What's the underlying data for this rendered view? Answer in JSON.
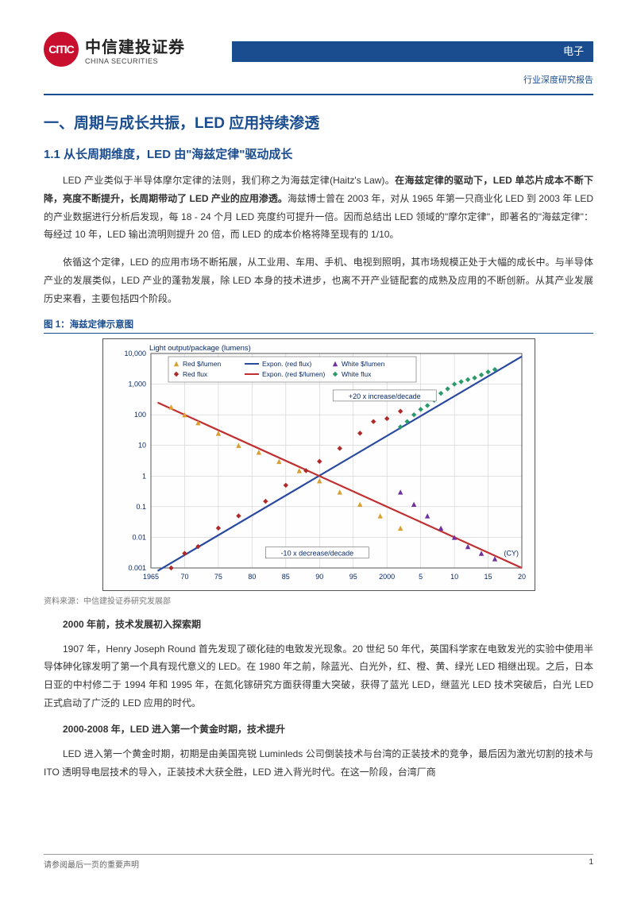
{
  "header": {
    "logo_inner": "CITIC",
    "logo_cn": "中信建投证券",
    "logo_en": "CHINA SECURITIES",
    "category": "电子",
    "report_type": "行业深度研究报告"
  },
  "section": {
    "h1": "一、周期与成长共振，LED 应用持续渗透",
    "h2": "1.1 从长周期维度，LED 由\"海兹定律\"驱动成长"
  },
  "paragraphs": {
    "p1a": "LED 产业类似于半导体摩尔定律的法则，我们称之为海兹定律(Haitz's  Law)。",
    "p1b": "在海兹定律的驱动下，LED 单芯片成本不断下降，亮度不断提升，长周期带动了 LED 产业的应用渗透。",
    "p1c": "海兹博士曾在 2003 年，对从 1965 年第一只商业化 LED 到 2003 年 LED 的产业数据进行分析后发现，每 18 - 24 个月 LED 亮度约可提升一倍。因而总结出 LED 领域的\"摩尔定律\"，即著名的\"海兹定律\"：每经过 10 年，LED 输出流明则提升 20 倍，而 LED 的成本价格将降至现有的 1/10。",
    "p2": "依循这个定律，LED 的应用市场不断拓展，从工业用、车用、手机、电视到照明，其市场规模正处于大幅的成长中。与半导体产业的发展类似，LED 产业的蓬勃发展，除 LED 本身的技术进步，也离不开产业链配套的成熟及应用的不断创新。从其产业发展历史来看，主要包括四个阶段。",
    "sub1": "2000 年前，技术发展初入探索期",
    "p3": "1907 年，Henry Joseph Round 首先发现了碳化硅的电致发光现象。20 世纪 50 年代，英国科学家在电致发光的实验中使用半导体砷化镓发明了第一个具有现代意义的 LED。在 1980 年之前，除蓝光、白光外，红、橙、黄、绿光 LED 相继出现。之后，日本日亚的中村修二于 1994 年和 1995 年，在氮化镓研究方面获得重大突破，获得了蓝光 LED，继蓝光 LED 技术突破后，白光 LED 正式启动了广泛的 LED 应用的时代。",
    "sub2": "2000-2008 年，LED 进入第一个黄金时期，技术提升",
    "p4": "LED 进入第一个黄金时期，初期是由美国亮锐 Luminleds 公司倒装技术与台湾的正装技术的竞争，最后因为激光切割的技术与 ITO 透明导电层技术的导入，正装技术大获全胜，LED 进入背光时代。在这一阶段，台湾厂商"
  },
  "figure": {
    "title": "图 1：海兹定律示意图",
    "source": "资料来源：中信建投证券研究发展部",
    "y_label": "Light output/package (lumens)",
    "x_ticks": [
      "1965",
      "70",
      "75",
      "80",
      "85",
      "90",
      "95",
      "2000",
      "5",
      "10",
      "15",
      "20"
    ],
    "y_ticks": [
      "0.001",
      "0.01",
      "0.1",
      "1",
      "10",
      "100",
      "1,000",
      "10,000"
    ],
    "annot_up": "+20 x increase/decade",
    "annot_down": "-10 x decrease/decade",
    "annot_cy": "(CY)",
    "legend": {
      "red_cost": "Red $/lumen",
      "red_flux": "Red flux",
      "expon_red_flux": "Expon. (red flux)",
      "white_cost": "White $/lumen",
      "white_flux": "White flux",
      "expon_red_cost": "Expon. (red $/lumen)"
    },
    "colors": {
      "bg": "#fefefe",
      "border": "#555555",
      "grid": "#cfcfcf",
      "text": "#0a2a6a",
      "red_line": "#c03030",
      "blue_line": "#2a4aa0",
      "red_flux_marker": "#b02828",
      "red_cost_marker": "#d8a030",
      "white_cost_marker": "#7030a0",
      "white_flux_marker": "#2a9a6a",
      "annot_box": "#666666"
    },
    "red_flux_points": [
      {
        "x": 1968,
        "y": 0.001
      },
      {
        "x": 1970,
        "y": 0.003
      },
      {
        "x": 1972,
        "y": 0.005
      },
      {
        "x": 1975,
        "y": 0.02
      },
      {
        "x": 1978,
        "y": 0.05
      },
      {
        "x": 1982,
        "y": 0.15
      },
      {
        "x": 1985,
        "y": 0.5
      },
      {
        "x": 1988,
        "y": 1.5
      },
      {
        "x": 1990,
        "y": 3
      },
      {
        "x": 1993,
        "y": 8
      },
      {
        "x": 1996,
        "y": 25
      },
      {
        "x": 1998,
        "y": 60
      },
      {
        "x": 2000,
        "y": 75
      },
      {
        "x": 2002,
        "y": 130
      }
    ],
    "red_cost_points": [
      {
        "x": 1968,
        "y": 180
      },
      {
        "x": 1970,
        "y": 100
      },
      {
        "x": 1972,
        "y": 55
      },
      {
        "x": 1975,
        "y": 25
      },
      {
        "x": 1978,
        "y": 10
      },
      {
        "x": 1981,
        "y": 6
      },
      {
        "x": 1984,
        "y": 3
      },
      {
        "x": 1987,
        "y": 1.5
      },
      {
        "x": 1990,
        "y": 0.7
      },
      {
        "x": 1993,
        "y": 0.3
      },
      {
        "x": 1996,
        "y": 0.12
      },
      {
        "x": 1999,
        "y": 0.05
      },
      {
        "x": 2002,
        "y": 0.02
      }
    ],
    "white_cost_points": [
      {
        "x": 2002,
        "y": 0.3
      },
      {
        "x": 2004,
        "y": 0.12
      },
      {
        "x": 2006,
        "y": 0.05
      },
      {
        "x": 2008,
        "y": 0.02
      },
      {
        "x": 2010,
        "y": 0.01
      },
      {
        "x": 2012,
        "y": 0.005
      },
      {
        "x": 2014,
        "y": 0.003
      },
      {
        "x": 2016,
        "y": 0.002
      }
    ],
    "white_flux_points": [
      {
        "x": 2002,
        "y": 40
      },
      {
        "x": 2003,
        "y": 60
      },
      {
        "x": 2004,
        "y": 100
      },
      {
        "x": 2005,
        "y": 150
      },
      {
        "x": 2006,
        "y": 200
      },
      {
        "x": 2007,
        "y": 300
      },
      {
        "x": 2008,
        "y": 500
      },
      {
        "x": 2009,
        "y": 700
      },
      {
        "x": 2010,
        "y": 1000
      },
      {
        "x": 2011,
        "y": 1200
      },
      {
        "x": 2012,
        "y": 1400
      },
      {
        "x": 2013,
        "y": 1600
      },
      {
        "x": 2014,
        "y": 2000
      },
      {
        "x": 2015,
        "y": 2500
      },
      {
        "x": 2016,
        "y": 3000
      }
    ],
    "lines": {
      "blue": {
        "x1": 1966,
        "y1": 0.0008,
        "x2": 2020,
        "y2": 8000
      },
      "red": {
        "x1": 1966,
        "y1": 250,
        "x2": 2020,
        "y2": 0.001
      }
    },
    "xlim": [
      1965,
      2020
    ],
    "ylim_log": [
      -3,
      4
    ]
  },
  "footer": {
    "disclaimer": "请参阅最后一页的重要声明",
    "page": "1"
  }
}
